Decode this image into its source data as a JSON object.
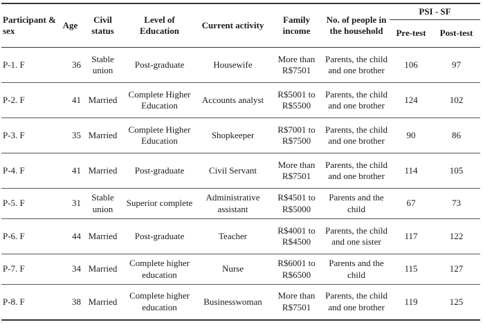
{
  "headers": {
    "participant": "Participant & sex",
    "age": "Age",
    "civil": "Civil status",
    "education": "Level of Education",
    "activity": "Current activity",
    "income": "Family income",
    "household": "No. of people in the household",
    "psi": "PSI - SF",
    "pre": "Pre-test",
    "post": "Post-test"
  },
  "rows": [
    {
      "participant": "P-1. F",
      "age": "36",
      "civil": "Stable union",
      "education": "Post-graduate",
      "activity": "Housewife",
      "income": "More than R$7501",
      "household": "Parents, the child and one brother",
      "pre": "106",
      "post": "97"
    },
    {
      "participant": "P-2. F",
      "age": "41",
      "civil": "Married",
      "education": "Complete Higher Education",
      "activity": "Accounts analyst",
      "income": "R$5001 to R$5500",
      "household": "Parents, the child and one brother",
      "pre": "124",
      "post": "102"
    },
    {
      "participant": "P-3. F",
      "age": "35",
      "civil": "Married",
      "education": "Complete Higher Education",
      "activity": "Shopkeeper",
      "income": "R$7001 to R$7500",
      "household": "Parents, the child and one brother",
      "pre": "90",
      "post": "86"
    },
    {
      "participant": "P-4. F",
      "age": "41",
      "civil": "Married",
      "education": "Post-graduate",
      "activity": "Civil Servant",
      "income": "More than R$7501",
      "household": "Parents, the child and one brother",
      "pre": "114",
      "post": "105"
    },
    {
      "participant": "P-5. F",
      "age": "31",
      "civil": "Stable union",
      "education": "Superior complete",
      "activity": "Administrative assistant",
      "income": "R$4501 to R$5000",
      "household": "Parents and the child",
      "pre": "67",
      "post": "73"
    },
    {
      "participant": "P-6. F",
      "age": "44",
      "civil": "Married",
      "education": "Post-graduate",
      "activity": "Teacher",
      "income": "R$4001 to R$4500",
      "household": "Parents, the child and one sister",
      "pre": "117",
      "post": "122"
    },
    {
      "participant": "P-7. F",
      "age": "34",
      "civil": "Married",
      "education": "Complete higher education",
      "activity": "Nurse",
      "income": "R$6001 to R$6500",
      "household": "Parents and the child",
      "pre": "115",
      "post": "127"
    },
    {
      "participant": "P-8. F",
      "age": "38",
      "civil": "Married",
      "education": "Complete higher education",
      "activity": "Businesswoman",
      "income": "More than R$7501",
      "household": "Parents, the child and one brother",
      "pre": "119",
      "post": "125"
    }
  ]
}
